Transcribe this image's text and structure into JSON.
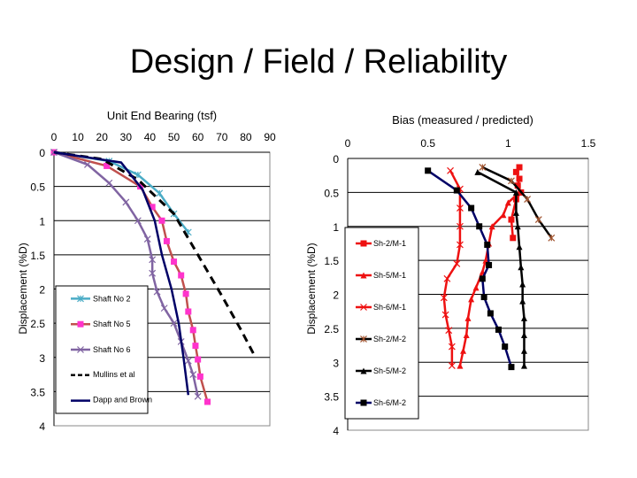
{
  "title": "Design / Field / Reliability",
  "chart_data": [
    {
      "type": "line",
      "title": "Unit End Bearing (tsf)",
      "xlabel": "Unit End Bearing (tsf)",
      "ylabel": "Displacement (%D)",
      "xlim": [
        0,
        90
      ],
      "ylim": [
        0,
        4
      ],
      "y_inverted": true,
      "x_axis_position": "top",
      "xticks": [
        "0",
        "10",
        "20",
        "30",
        "40",
        "50",
        "60",
        "70",
        "80",
        "90"
      ],
      "yticks": [
        "0",
        "0.5",
        "1",
        "1.5",
        "2",
        "2.5",
        "3",
        "3.5",
        "4"
      ],
      "grid": "horizontal",
      "legend": "bottom-left",
      "series": [
        {
          "name": "Shaft No 2",
          "color": "#4bacc6",
          "marker": "star",
          "dash": false,
          "points": [
            [
              0,
              0
            ],
            [
              23,
              0.13
            ],
            [
              35,
              0.33
            ],
            [
              44,
              0.6
            ],
            [
              50,
              0.9
            ],
            [
              56,
              1.17
            ]
          ]
        },
        {
          "name": "Shaft No 5",
          "color": "#c0504d",
          "markerColor": "#ff33cc",
          "marker": "square",
          "dash": false,
          "points": [
            [
              0,
              0
            ],
            [
              22,
              0.2
            ],
            [
              36,
              0.5
            ],
            [
              41,
              0.8
            ],
            [
              45,
              1.0
            ],
            [
              47,
              1.3
            ],
            [
              50,
              1.6
            ],
            [
              53,
              1.8
            ],
            [
              55,
              2.07
            ],
            [
              56,
              2.33
            ],
            [
              58,
              2.6
            ],
            [
              59,
              2.83
            ],
            [
              60,
              3.03
            ],
            [
              61,
              3.28
            ],
            [
              64,
              3.65
            ]
          ]
        },
        {
          "name": "Shaft No 6",
          "color": "#8064a2",
          "marker": "x",
          "dash": false,
          "points": [
            [
              0,
              0
            ],
            [
              14,
              0.18
            ],
            [
              23,
              0.45
            ],
            [
              30,
              0.73
            ],
            [
              35,
              1.0
            ],
            [
              39,
              1.27
            ],
            [
              41,
              1.57
            ],
            [
              41,
              1.77
            ],
            [
              43,
              2.04
            ],
            [
              46,
              2.28
            ],
            [
              50,
              2.5
            ],
            [
              53,
              2.77
            ],
            [
              56,
              3.05
            ],
            [
              58,
              3.25
            ],
            [
              60,
              3.57
            ]
          ]
        },
        {
          "name": "Mullins et al",
          "color": "#000000",
          "marker": "none",
          "dash": true,
          "points": [
            [
              0,
              0
            ],
            [
              20,
              0.1
            ],
            [
              35,
              0.4
            ],
            [
              50,
              0.9
            ],
            [
              60,
              1.5
            ],
            [
              70,
              2.1
            ],
            [
              78,
              2.6
            ],
            [
              84,
              3.0
            ]
          ]
        },
        {
          "name": "Dapp and Brown",
          "color": "#000066",
          "marker": "none",
          "dash": false,
          "points": [
            [
              0,
              0
            ],
            [
              28,
              0.15
            ],
            [
              37,
              0.55
            ],
            [
              42,
              1.0
            ],
            [
              45,
              1.5
            ],
            [
              49,
              2.0
            ],
            [
              52,
              2.5
            ],
            [
              54,
              3.0
            ],
            [
              56,
              3.55
            ]
          ]
        }
      ]
    },
    {
      "type": "line",
      "title": "Bias (measured / predicted)",
      "xlabel": "Bias (measured / predicted)",
      "ylabel": "Displacement (%D)",
      "xlim": [
        0,
        1.5
      ],
      "ylim": [
        0,
        4
      ],
      "y_inverted": true,
      "x_axis_position": "top",
      "xticks": [
        "0",
        "0.5",
        "1",
        "1.5"
      ],
      "yticks": [
        "0",
        "0.5",
        "1",
        "1.5",
        "2",
        "2.5",
        "3",
        "3.5",
        "4"
      ],
      "grid": "horizontal",
      "legend": "left",
      "series": [
        {
          "name": "Sh-2/M-1",
          "color": "#ee1111",
          "marker": "square",
          "dash": false,
          "points": [
            [
              1.07,
              0.13
            ],
            [
              1.05,
              0.2
            ],
            [
              1.07,
              0.3
            ],
            [
              1.06,
              0.4
            ],
            [
              1.08,
              0.5
            ],
            [
              1.05,
              0.6
            ],
            [
              1.02,
              0.9
            ],
            [
              1.03,
              1.17
            ]
          ]
        },
        {
          "name": "Sh-5/M-1",
          "color": "#ee1111",
          "marker": "triangle",
          "dash": false,
          "points": [
            [
              1.07,
              0.5
            ],
            [
              1.0,
              0.65
            ],
            [
              0.97,
              0.83
            ],
            [
              0.9,
              1.0
            ],
            [
              0.88,
              1.25
            ],
            [
              0.86,
              1.5
            ],
            [
              0.84,
              1.67
            ],
            [
              0.8,
              1.9
            ],
            [
              0.77,
              2.07
            ],
            [
              0.75,
              2.35
            ],
            [
              0.74,
              2.6
            ],
            [
              0.72,
              2.83
            ],
            [
              0.7,
              3.05
            ]
          ]
        },
        {
          "name": "Sh-6/M-1",
          "color": "#ee1111",
          "marker": "x",
          "dash": false,
          "points": [
            [
              0.64,
              0.18
            ],
            [
              0.7,
              0.45
            ],
            [
              0.7,
              0.73
            ],
            [
              0.7,
              1.0
            ],
            [
              0.7,
              1.27
            ],
            [
              0.68,
              1.55
            ],
            [
              0.62,
              1.77
            ],
            [
              0.6,
              2.05
            ],
            [
              0.61,
              2.3
            ],
            [
              0.63,
              2.53
            ],
            [
              0.65,
              2.77
            ],
            [
              0.65,
              3.05
            ]
          ]
        },
        {
          "name": "Sh-2/M-2",
          "color": "#000000",
          "markerColor": "#a0522d",
          "marker": "star",
          "dash": false,
          "points": [
            [
              0.84,
              0.13
            ],
            [
              1.02,
              0.33
            ],
            [
              1.12,
              0.6
            ],
            [
              1.19,
              0.9
            ],
            [
              1.27,
              1.17
            ]
          ]
        },
        {
          "name": "Sh-5/M-2",
          "color": "#000000",
          "marker": "triangle",
          "dash": false,
          "points": [
            [
              0.81,
              0.2
            ],
            [
              1.05,
              0.5
            ],
            [
              1.05,
              0.8
            ],
            [
              1.06,
              1.0
            ],
            [
              1.07,
              1.3
            ],
            [
              1.08,
              1.6
            ],
            [
              1.09,
              1.85
            ],
            [
              1.09,
              2.1
            ],
            [
              1.1,
              2.35
            ],
            [
              1.1,
              2.6
            ],
            [
              1.1,
              2.83
            ],
            [
              1.1,
              3.05
            ]
          ]
        },
        {
          "name": "Sh-6/M-2",
          "color": "#000066",
          "markerColor": "#000000",
          "marker": "square",
          "dash": false,
          "points": [
            [
              0.5,
              0.18
            ],
            [
              0.68,
              0.47
            ],
            [
              0.77,
              0.73
            ],
            [
              0.82,
              1.0
            ],
            [
              0.87,
              1.27
            ],
            [
              0.88,
              1.57
            ],
            [
              0.84,
              1.77
            ],
            [
              0.85,
              2.04
            ],
            [
              0.89,
              2.28
            ],
            [
              0.94,
              2.52
            ],
            [
              0.98,
              2.77
            ],
            [
              1.02,
              3.07
            ]
          ]
        }
      ]
    }
  ]
}
